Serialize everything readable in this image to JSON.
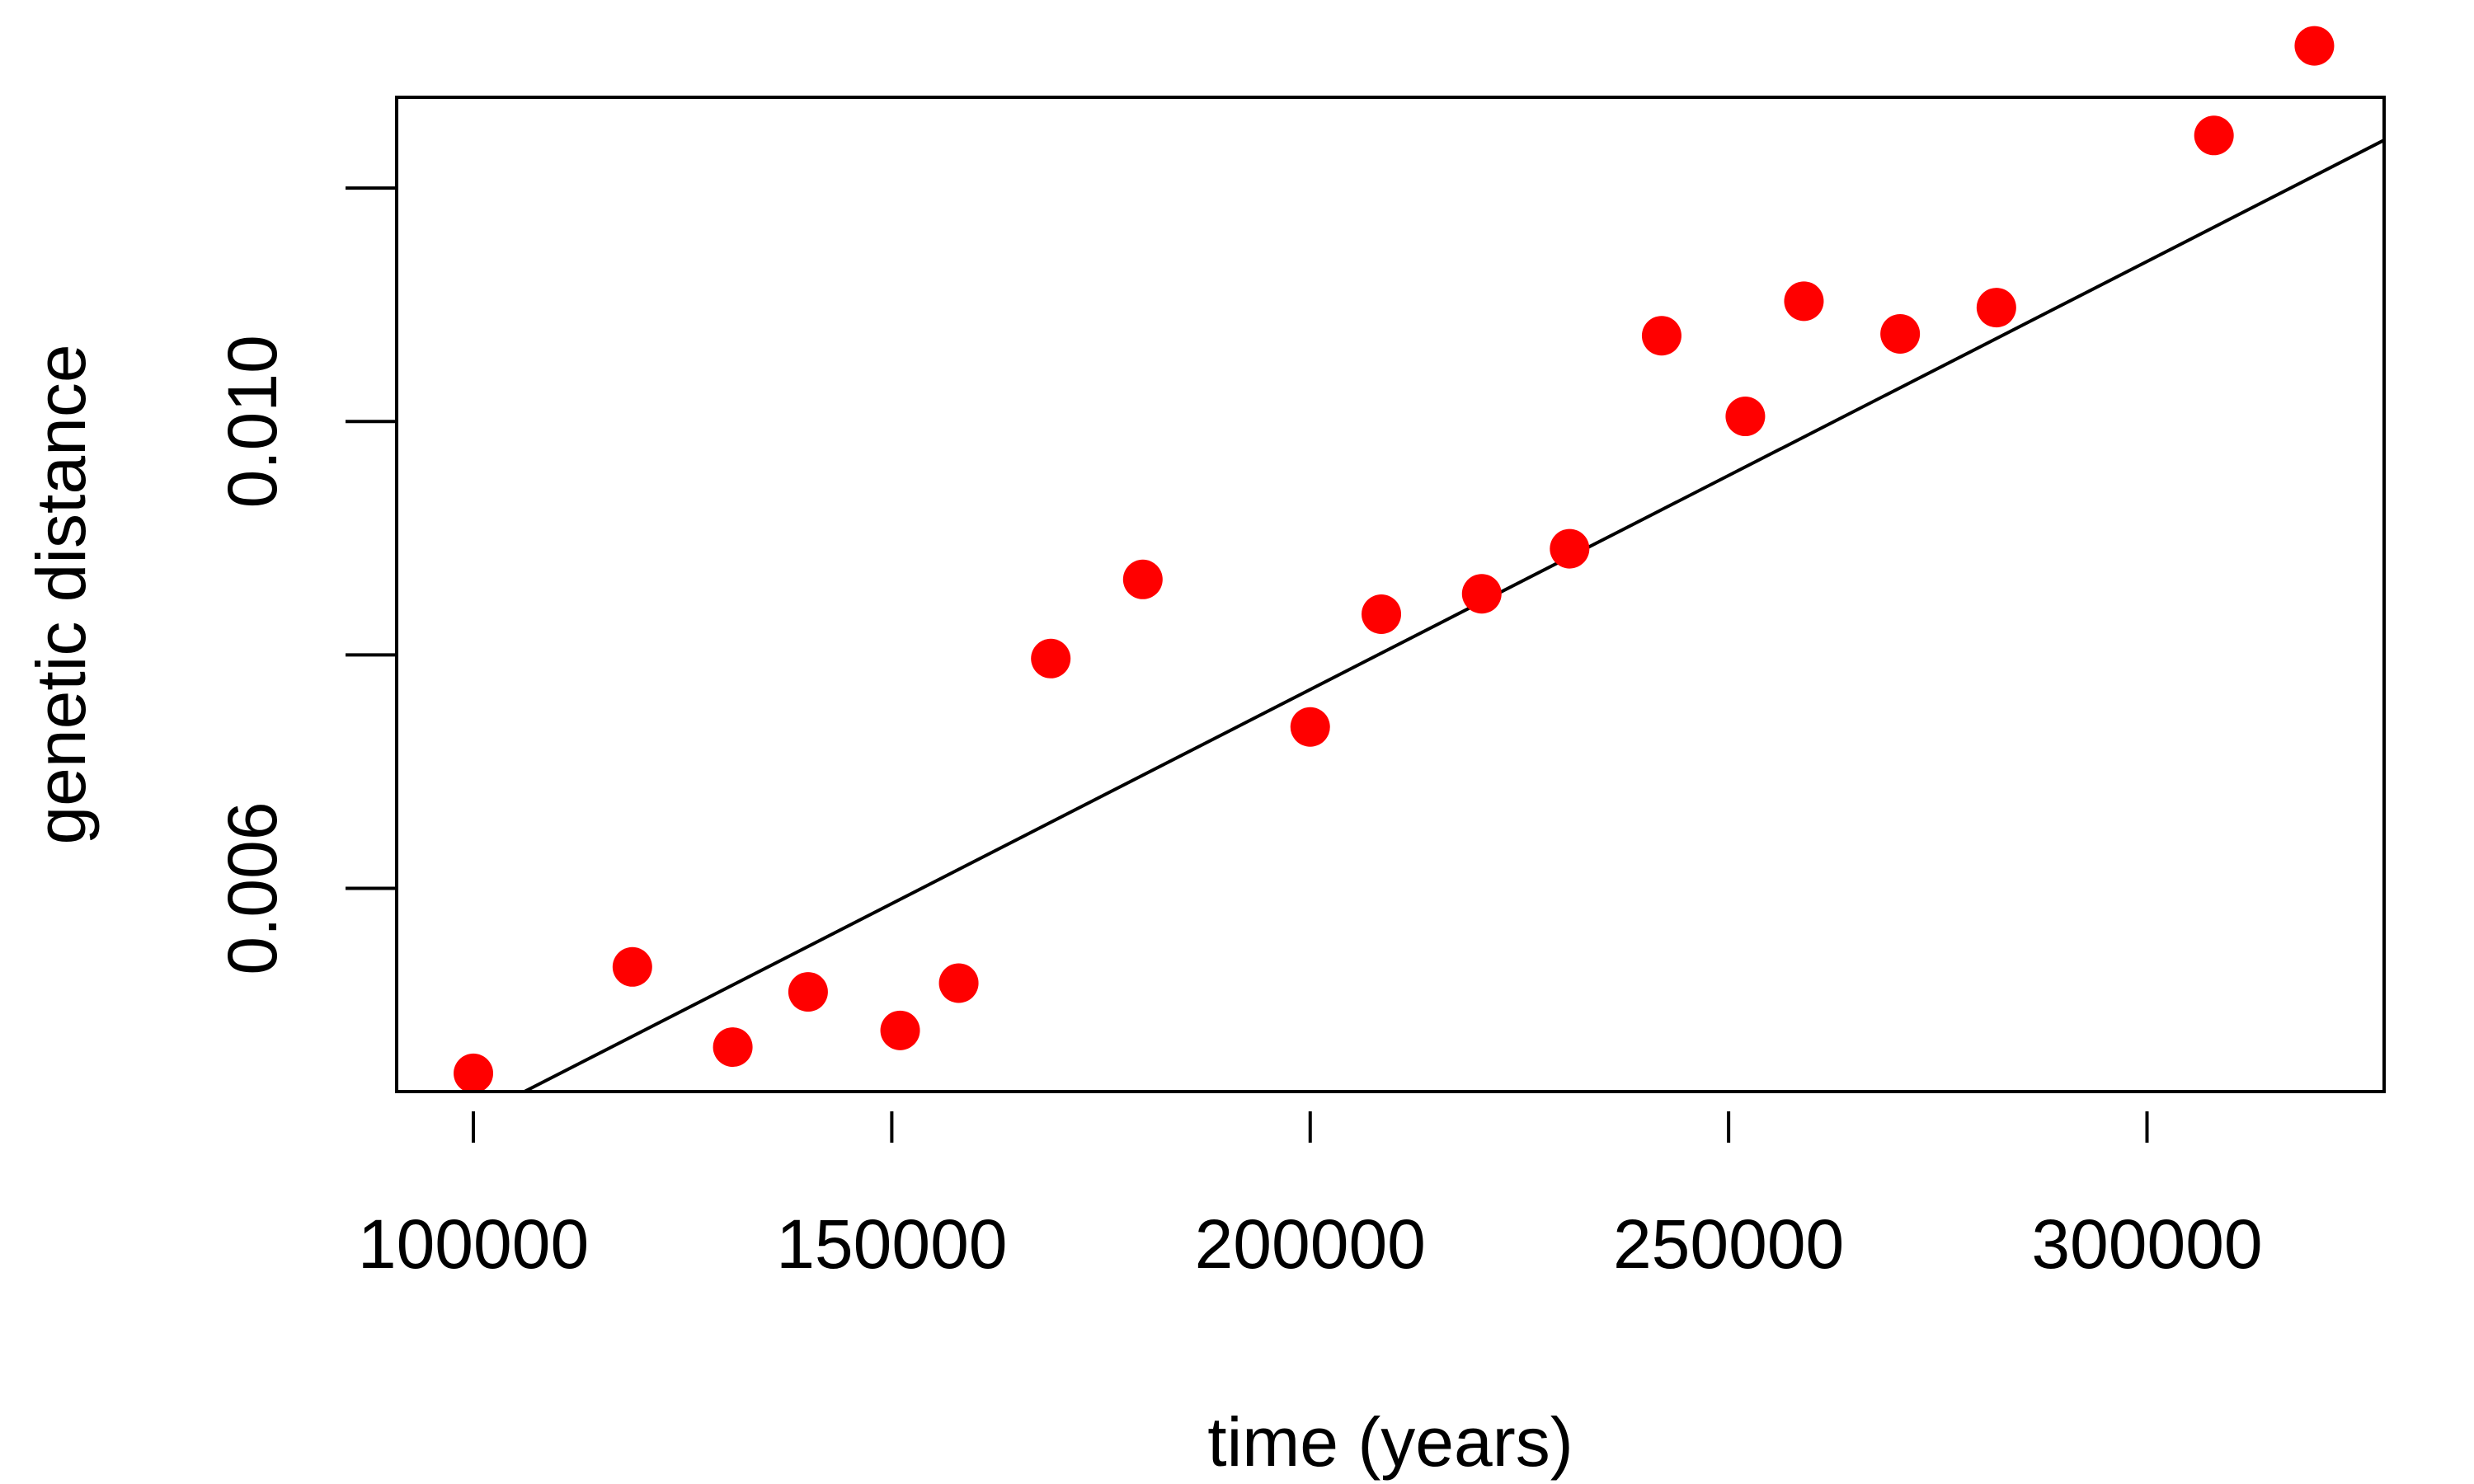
{
  "chart_data": {
    "type": "scatter",
    "title": "",
    "xlabel": "time (years)",
    "ylabel": "genetic distance",
    "xlim": [
      90833,
      328333
    ],
    "ylim": [
      0.004259,
      0.012778
    ],
    "x_ticks": [
      100000,
      150000,
      200000,
      250000,
      300000
    ],
    "x_tick_labels": [
      "100000",
      "150000",
      "200000",
      "250000",
      "300000"
    ],
    "y_ticks": [
      0.006,
      0.008,
      0.01,
      0.012
    ],
    "y_tick_labels": [
      "0.006",
      "",
      "0.010",
      ""
    ],
    "grid": false,
    "legend": "none",
    "colors": {
      "points": "#ff0000",
      "line": "#000000",
      "axes": "#000000"
    },
    "series": [
      {
        "values": [
          {
            "x": 100000,
            "y": 0.004415
          },
          {
            "x": 119000,
            "y": 0.005327
          },
          {
            "x": 131000,
            "y": 0.00464
          },
          {
            "x": 140000,
            "y": 0.005113
          },
          {
            "x": 151000,
            "y": 0.004783
          },
          {
            "x": 158000,
            "y": 0.005188
          },
          {
            "x": 169000,
            "y": 0.007969
          },
          {
            "x": 180000,
            "y": 0.008647
          },
          {
            "x": 200000,
            "y": 0.007383
          },
          {
            "x": 208500,
            "y": 0.008349
          },
          {
            "x": 220500,
            "y": 0.008524
          },
          {
            "x": 231000,
            "y": 0.00891
          },
          {
            "x": 242000,
            "y": 0.010735
          },
          {
            "x": 252000,
            "y": 0.010044
          },
          {
            "x": 259000,
            "y": 0.011031
          },
          {
            "x": 270500,
            "y": 0.010751
          },
          {
            "x": 282000,
            "y": 0.010976
          },
          {
            "x": 308000,
            "y": 0.012451
          },
          {
            "x": 320000,
            "y": 0.013219
          }
        ]
      }
    ],
    "fit_line": [
      {
        "x": 100000,
        "y": 0.004035
      },
      {
        "x": 328333,
        "y": 0.012411
      }
    ]
  }
}
